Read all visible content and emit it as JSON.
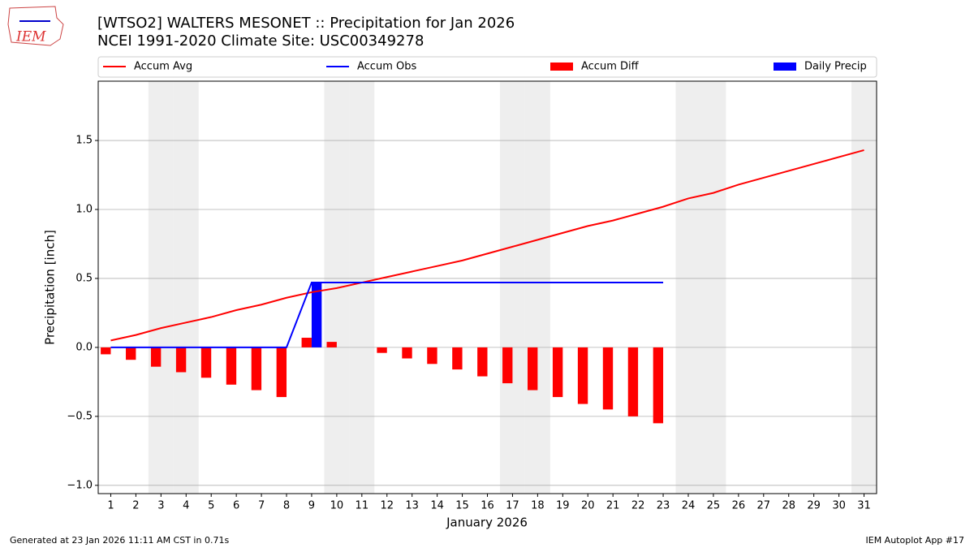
{
  "logo": "IEM",
  "footer": {
    "left": "Generated at 23 Jan 2026 11:11 AM CST in 0.71s",
    "right": "IEM Autoplot App #17"
  },
  "chart_data": {
    "type": "combo",
    "title": "[WTSO2] WALTERS MESONET :: Precipitation for Jan 2026",
    "subtitle": "NCEI 1991-2020 Climate Site: USC00349278",
    "xlabel": "January 2026",
    "ylabel": "Precipitation [inch]",
    "legend": "top",
    "grid": true,
    "shaded_days": [
      3,
      4,
      10,
      11,
      17,
      18,
      24,
      25,
      31
    ],
    "shade_color": "#eeeeee",
    "x": [
      1,
      2,
      3,
      4,
      5,
      6,
      7,
      8,
      9,
      10,
      11,
      12,
      13,
      14,
      15,
      16,
      17,
      18,
      19,
      20,
      21,
      22,
      23,
      24,
      25,
      26,
      27,
      28,
      29,
      30,
      31
    ],
    "xlim": [
      0.5,
      31.5
    ],
    "xticks": [
      1,
      2,
      3,
      4,
      5,
      6,
      7,
      8,
      9,
      10,
      11,
      12,
      13,
      14,
      15,
      16,
      17,
      18,
      19,
      20,
      21,
      22,
      23,
      24,
      25,
      26,
      27,
      28,
      29,
      30,
      31
    ],
    "ylim": [
      -1.06,
      1.93
    ],
    "yticks": [
      {
        "value": -1,
        "label": "−1.0"
      },
      {
        "value": -0.5,
        "label": "−0.5"
      },
      {
        "value": 0,
        "label": "0.0"
      },
      0.5,
      {
        "value": 1,
        "label": "1.0"
      },
      1.5
    ],
    "series": [
      {
        "name": "Accum Avg",
        "type": "line",
        "color": "#ff0000",
        "values": [
          0.05,
          0.09,
          0.14,
          0.18,
          0.22,
          0.27,
          0.31,
          0.36,
          0.4,
          0.43,
          0.47,
          0.51,
          0.55,
          0.59,
          0.63,
          0.68,
          0.73,
          0.78,
          0.83,
          0.88,
          0.92,
          0.97,
          1.02,
          1.08,
          1.12,
          1.18,
          1.23,
          1.28,
          1.33,
          1.38,
          1.43
        ]
      },
      {
        "name": "Accum Obs",
        "type": "line",
        "color": "#0000ff",
        "values": [
          0,
          0,
          0,
          0,
          0,
          0,
          0,
          0,
          0.47,
          0.47,
          0.47,
          0.47,
          0.47,
          0.47,
          0.47,
          0.47,
          0.47,
          0.47,
          0.47,
          0.47,
          0.47,
          0.47,
          0.47,
          null,
          null,
          null,
          null,
          null,
          null,
          null,
          null
        ]
      },
      {
        "name": "Accum Diff",
        "type": "bar",
        "side": "left",
        "color": "#ff0000",
        "values": [
          -0.05,
          -0.09,
          -0.14,
          -0.18,
          -0.22,
          -0.27,
          -0.31,
          -0.36,
          0.07,
          0.04,
          0,
          -0.04,
          -0.08,
          -0.12,
          -0.16,
          -0.21,
          -0.26,
          -0.31,
          -0.36,
          -0.41,
          -0.45,
          -0.5,
          -0.55,
          null,
          null,
          null,
          null,
          null,
          null,
          null,
          null
        ]
      },
      {
        "name": "Daily Precip",
        "type": "bar",
        "side": "right",
        "color": "#0000ff",
        "values": [
          0,
          0,
          0,
          0,
          0,
          0,
          0,
          0,
          0.47,
          0,
          0,
          0,
          0,
          0,
          0,
          0,
          0,
          0,
          0,
          0,
          0,
          0,
          0,
          null,
          null,
          null,
          null,
          null,
          null,
          null,
          null
        ]
      }
    ]
  }
}
